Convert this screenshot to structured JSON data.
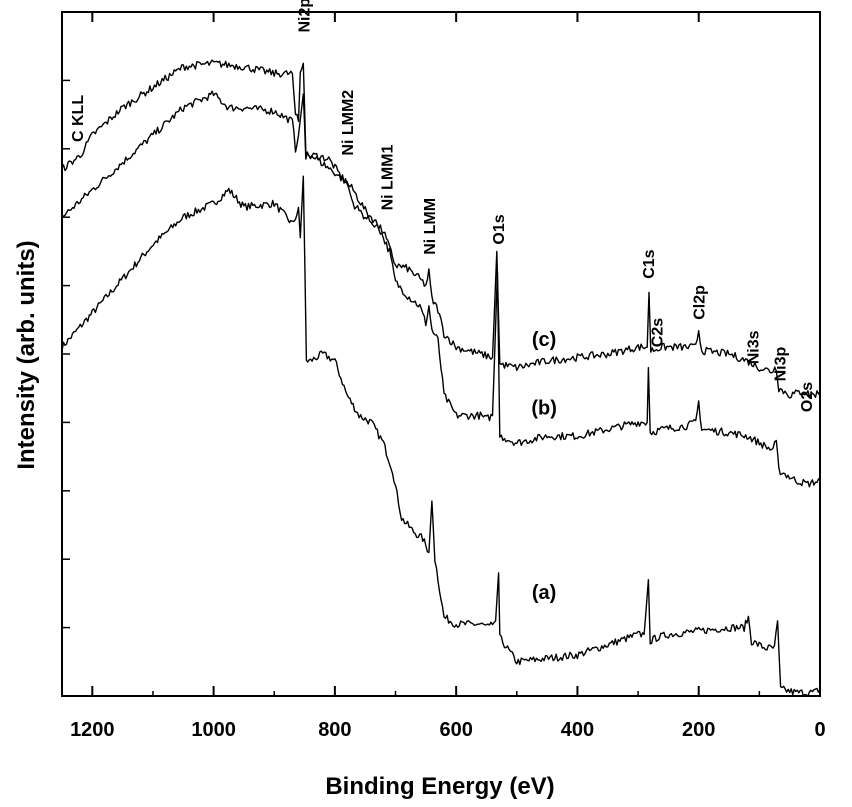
{
  "chart_data": {
    "type": "line",
    "xlabel": "Binding Energy (eV)",
    "ylabel": "Intensity (arb. units)",
    "xlim": [
      1250,
      0
    ],
    "x_reversed": true,
    "xticks": [
      1200,
      1000,
      800,
      600,
      400,
      200,
      0
    ],
    "y_tick_labels_shown": false,
    "ylim": [
      0,
      100
    ],
    "grid": false,
    "series": [
      {
        "name": "(a)",
        "points": [
          [
            1250,
            51
          ],
          [
            1200,
            56
          ],
          [
            1150,
            61
          ],
          [
            1100,
            66
          ],
          [
            1050,
            70
          ],
          [
            1000,
            72
          ],
          [
            975,
            74
          ],
          [
            950,
            71.5
          ],
          [
            900,
            72
          ],
          [
            870,
            69
          ],
          [
            860,
            71
          ],
          [
            857,
            67
          ],
          [
            852,
            76
          ],
          [
            847,
            49
          ],
          [
            840,
            49
          ],
          [
            820,
            50
          ],
          [
            800,
            49
          ],
          [
            780,
            44
          ],
          [
            760,
            41
          ],
          [
            740,
            40
          ],
          [
            720,
            37
          ],
          [
            705,
            33
          ],
          [
            690,
            26
          ],
          [
            670,
            24
          ],
          [
            655,
            23
          ],
          [
            645,
            21
          ],
          [
            640,
            28.5
          ],
          [
            635,
            20
          ],
          [
            620,
            11.5
          ],
          [
            600,
            10.5
          ],
          [
            560,
            10.5
          ],
          [
            545,
            10
          ],
          [
            535,
            11
          ],
          [
            530,
            18
          ],
          [
            528,
            8.5
          ],
          [
            500,
            5
          ],
          [
            450,
            5.5
          ],
          [
            400,
            6
          ],
          [
            300,
            9
          ],
          [
            290,
            9
          ],
          [
            283,
            17
          ],
          [
            280,
            8
          ],
          [
            270,
            8.5
          ],
          [
            250,
            9
          ],
          [
            200,
            9.5
          ],
          [
            150,
            10
          ],
          [
            125,
            10
          ],
          [
            118,
            11.5
          ],
          [
            113,
            8
          ],
          [
            90,
            7
          ],
          [
            75,
            7
          ],
          [
            70,
            11
          ],
          [
            65,
            1
          ],
          [
            40,
            0.5
          ],
          [
            10,
            0.5
          ],
          [
            0,
            1
          ]
        ]
      },
      {
        "name": "(b)",
        "points": [
          [
            1250,
            70
          ],
          [
            1200,
            74
          ],
          [
            1150,
            78
          ],
          [
            1100,
            82
          ],
          [
            1050,
            86
          ],
          [
            1000,
            88
          ],
          [
            975,
            86
          ],
          [
            950,
            86
          ],
          [
            900,
            85.5
          ],
          [
            870,
            84
          ],
          [
            865,
            80
          ],
          [
            860,
            82
          ],
          [
            852,
            88
          ],
          [
            848,
            79
          ],
          [
            830,
            79
          ],
          [
            810,
            78.5
          ],
          [
            790,
            76
          ],
          [
            770,
            74
          ],
          [
            750,
            71
          ],
          [
            730,
            69
          ],
          [
            710,
            65
          ],
          [
            700,
            60.5
          ],
          [
            680,
            58.5
          ],
          [
            660,
            57
          ],
          [
            650,
            54.5
          ],
          [
            645,
            57
          ],
          [
            640,
            53.5
          ],
          [
            630,
            52
          ],
          [
            620,
            44
          ],
          [
            600,
            41
          ],
          [
            560,
            41
          ],
          [
            550,
            40.5
          ],
          [
            540,
            41
          ],
          [
            532,
            62
          ],
          [
            528,
            38
          ],
          [
            500,
            37
          ],
          [
            450,
            38
          ],
          [
            400,
            38
          ],
          [
            350,
            39
          ],
          [
            300,
            40
          ],
          [
            285,
            40
          ],
          [
            283,
            48
          ],
          [
            280,
            38.5
          ],
          [
            260,
            39
          ],
          [
            220,
            39.5
          ],
          [
            205,
            40
          ],
          [
            200,
            43
          ],
          [
            195,
            39
          ],
          [
            150,
            38.5
          ],
          [
            120,
            38
          ],
          [
            80,
            36
          ],
          [
            72,
            37
          ],
          [
            68,
            33
          ],
          [
            40,
            31.5
          ],
          [
            20,
            31
          ],
          [
            0,
            31.5
          ]
        ]
      },
      {
        "name": "(c)",
        "points": [
          [
            1250,
            77
          ],
          [
            1220,
            79
          ],
          [
            1200,
            82
          ],
          [
            1150,
            86
          ],
          [
            1100,
            89
          ],
          [
            1050,
            92
          ],
          [
            1000,
            92.5
          ],
          [
            950,
            92
          ],
          [
            900,
            91
          ],
          [
            870,
            91
          ],
          [
            865,
            85
          ],
          [
            860,
            84
          ],
          [
            857,
            91
          ],
          [
            852,
            92.5
          ],
          [
            848,
            79.5
          ],
          [
            830,
            78.5
          ],
          [
            800,
            76.5
          ],
          [
            780,
            75
          ],
          [
            770,
            72
          ],
          [
            750,
            70
          ],
          [
            720,
            68
          ],
          [
            700,
            63
          ],
          [
            680,
            62.5
          ],
          [
            660,
            61
          ],
          [
            650,
            60
          ],
          [
            645,
            62
          ],
          [
            640,
            58
          ],
          [
            630,
            56.5
          ],
          [
            620,
            53
          ],
          [
            600,
            51
          ],
          [
            560,
            50
          ],
          [
            540,
            49.5
          ],
          [
            533,
            65
          ],
          [
            528,
            48.5
          ],
          [
            500,
            48
          ],
          [
            450,
            49
          ],
          [
            400,
            49.5
          ],
          [
            350,
            50
          ],
          [
            300,
            51
          ],
          [
            285,
            51
          ],
          [
            282,
            59
          ],
          [
            279,
            50.5
          ],
          [
            260,
            51
          ],
          [
            220,
            51
          ],
          [
            205,
            51
          ],
          [
            200,
            53.5
          ],
          [
            195,
            50.5
          ],
          [
            150,
            50
          ],
          [
            120,
            49
          ],
          [
            100,
            48
          ],
          [
            80,
            47.5
          ],
          [
            72,
            48
          ],
          [
            68,
            45
          ],
          [
            50,
            44
          ],
          [
            30,
            44.5
          ],
          [
            10,
            44
          ],
          [
            0,
            44.5
          ]
        ]
      }
    ],
    "annotations": [
      {
        "text": "C KLL",
        "x": 1225
      },
      {
        "text": "Ni2p",
        "x": 852
      },
      {
        "text": "Ni LMM2",
        "x": 780
      },
      {
        "text": "Ni LMM1",
        "x": 715
      },
      {
        "text": "Ni LMM",
        "x": 645
      },
      {
        "text": "O1s",
        "x": 531
      },
      {
        "text": "C1s",
        "x": 284
      },
      {
        "text": "C2s",
        "x": 270
      },
      {
        "text": "Cl2p",
        "x": 200
      },
      {
        "text": "Ni3s",
        "x": 111
      },
      {
        "text": "Ni3p",
        "x": 67
      },
      {
        "text": "O2s",
        "x": 23
      }
    ]
  }
}
